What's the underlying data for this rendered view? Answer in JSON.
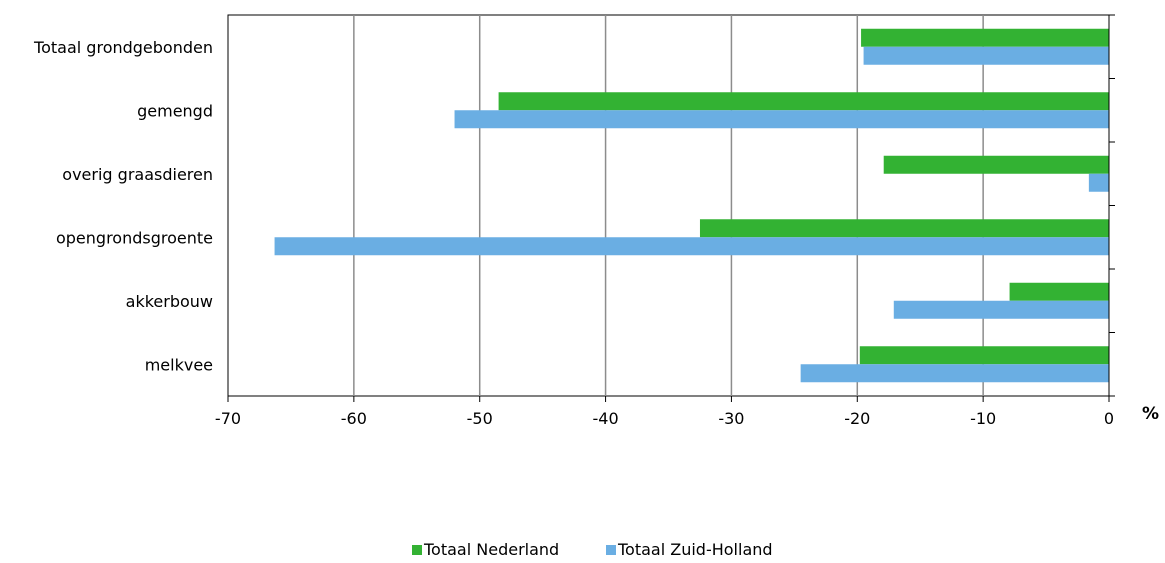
{
  "chart_data": {
    "type": "bar",
    "orientation": "horizontal",
    "categories": [
      "Totaal grondgebonden",
      "gemengd",
      "overig graasdieren",
      "opengrondsgroente",
      "akkerbouw",
      "melkvee"
    ],
    "series": [
      {
        "name": "Totaal Nederland",
        "color": "#33b233",
        "values": [
          -19.7,
          -48.5,
          -17.9,
          -32.5,
          -7.9,
          -19.8
        ]
      },
      {
        "name": "Totaal Zuid-Holland",
        "color": "#6aaee3",
        "values": [
          -19.5,
          -52.0,
          -1.6,
          -66.3,
          -17.1,
          -24.5
        ]
      }
    ],
    "xlim": [
      -70,
      0
    ],
    "xticks": [
      -70,
      -60,
      -50,
      -40,
      -30,
      -20,
      -10,
      0
    ],
    "xunit": "%",
    "grid": true,
    "legend": "bottom-center"
  }
}
